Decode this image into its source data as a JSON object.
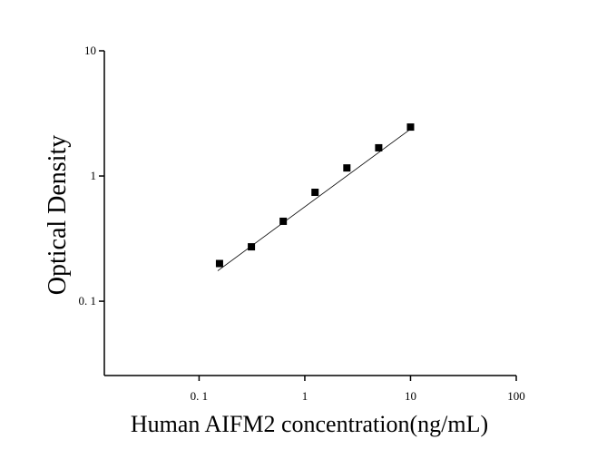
{
  "chart_data": {
    "type": "scatter",
    "x_label": "Human AIFM2 concentration(ng/mL)",
    "y_label": "Optical Density",
    "x": [
      0.156,
      0.3125,
      0.625,
      1.25,
      2.5,
      5,
      10
    ],
    "values": [
      0.2,
      0.272,
      0.435,
      0.741,
      1.16,
      1.68,
      2.46
    ],
    "color": "#000000",
    "fit_line": {
      "x": [
        0.15,
        10
      ],
      "y": [
        0.175,
        2.37
      ]
    },
    "log_x": true,
    "log_y": true,
    "xlim": [
      0.0127,
      100
    ],
    "ylim": [
      0.0255,
      10
    ],
    "xticks": [
      {
        "value": 0.1,
        "label": "0. 1"
      },
      1,
      10,
      100
    ],
    "yticks": [
      {
        "value": 0.1,
        "label": "0. 1"
      },
      1,
      10
    ]
  }
}
